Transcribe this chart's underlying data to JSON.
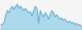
{
  "values": [
    5,
    5,
    7,
    14,
    18,
    16,
    20,
    22,
    19,
    22,
    24,
    20,
    22,
    20,
    18,
    20,
    18,
    16,
    17,
    13,
    18,
    22,
    20,
    6,
    18,
    14,
    12,
    16,
    14,
    10,
    14,
    18,
    16,
    12,
    14,
    12,
    10,
    11,
    9,
    10,
    8,
    7,
    8,
    6,
    7,
    5,
    6,
    4,
    5,
    3
  ],
  "line_color": "#4fa8d5",
  "fill_color": "#7ec8e3",
  "fill_alpha": 0.6,
  "background_color": "#f5f5f5",
  "linewidth": 0.8
}
